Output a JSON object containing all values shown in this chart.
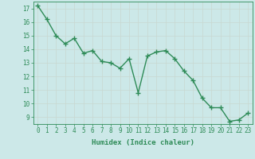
{
  "xlabel": "Humidex (Indice chaleur)",
  "x": [
    0,
    1,
    2,
    3,
    4,
    5,
    6,
    7,
    8,
    9,
    10,
    11,
    12,
    13,
    14,
    15,
    16,
    17,
    18,
    19,
    20,
    21,
    22,
    23
  ],
  "y": [
    17.2,
    16.2,
    15.0,
    14.4,
    14.8,
    13.7,
    13.9,
    13.1,
    13.0,
    12.6,
    13.3,
    10.8,
    13.5,
    13.8,
    13.9,
    13.3,
    12.4,
    11.7,
    10.4,
    9.7,
    9.7,
    8.7,
    8.8,
    9.3
  ],
  "line_color": "#2e8b57",
  "marker": "+",
  "marker_size": 4,
  "background_color": "#cce8e8",
  "grid_color": "#d0e8e0",
  "ylim": [
    8.5,
    17.5
  ],
  "xlim": [
    -0.5,
    23.5
  ],
  "yticks": [
    9,
    10,
    11,
    12,
    13,
    14,
    15,
    16,
    17
  ],
  "xticks": [
    0,
    1,
    2,
    3,
    4,
    5,
    6,
    7,
    8,
    9,
    10,
    11,
    12,
    13,
    14,
    15,
    16,
    17,
    18,
    19,
    20,
    21,
    22,
    23
  ],
  "tick_color": "#2e8b57",
  "label_fontsize": 6.5,
  "tick_fontsize": 5.5,
  "line_width": 1.0,
  "marker_edge_width": 1.0
}
